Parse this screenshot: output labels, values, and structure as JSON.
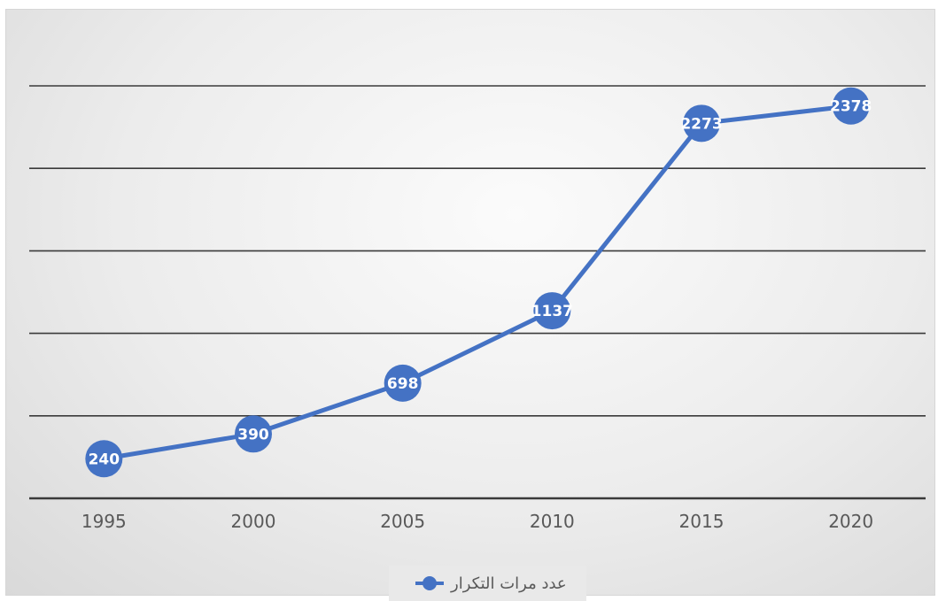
{
  "chart_data": {
    "type": "line",
    "categories": [
      "1995",
      "2000",
      "2005",
      "2010",
      "2015",
      "2020"
    ],
    "series": [
      {
        "name": "عدد مرات التكرار",
        "values": [
          240,
          390,
          698,
          1137,
          2273,
          2378
        ],
        "color": "#4472c4"
      }
    ],
    "ylim": [
      0,
      2500
    ],
    "grid": true,
    "legend_position": "bottom",
    "data_labels": true
  }
}
